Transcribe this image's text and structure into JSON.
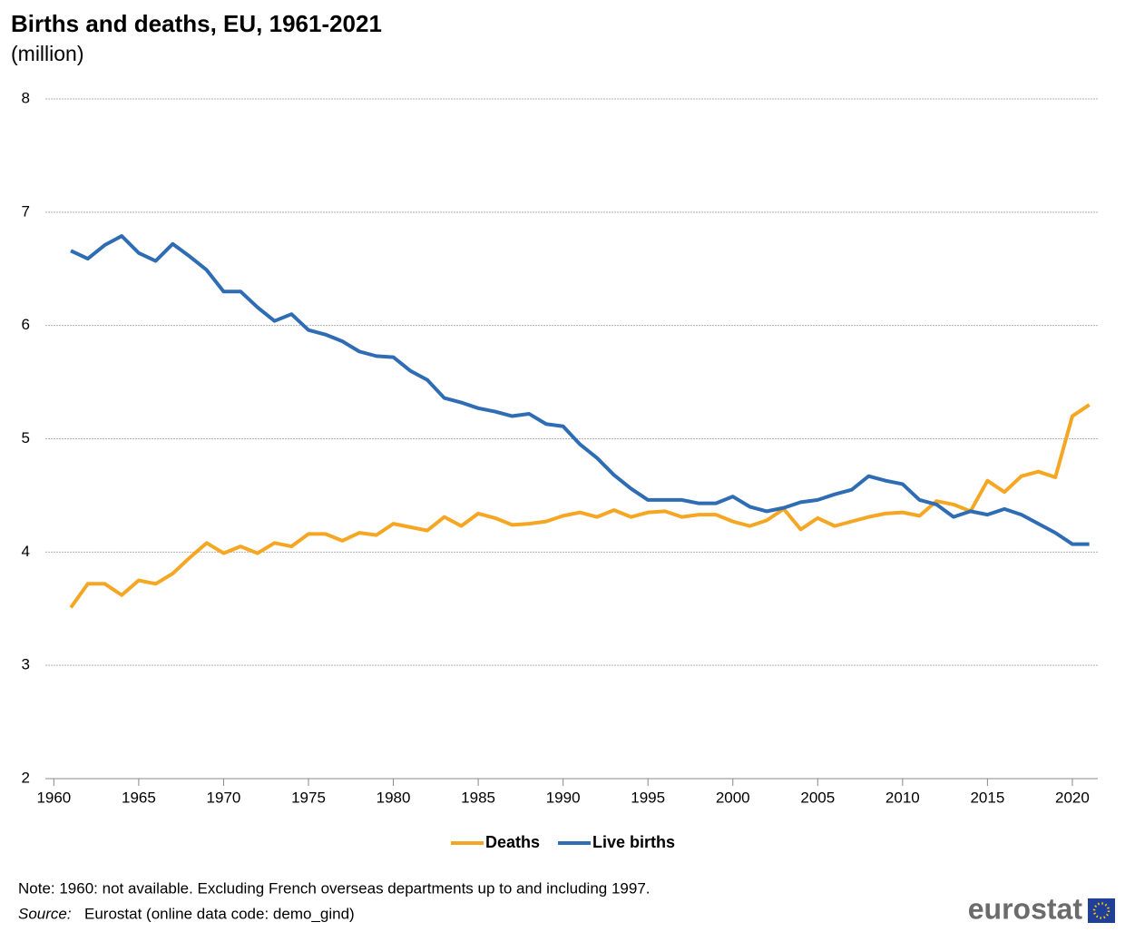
{
  "chart_data": {
    "type": "line",
    "title": "Births and deaths, EU, 1961-2021",
    "subtitle": "(million)",
    "x": [
      1961,
      1962,
      1963,
      1964,
      1965,
      1966,
      1967,
      1968,
      1969,
      1970,
      1971,
      1972,
      1973,
      1974,
      1975,
      1976,
      1977,
      1978,
      1979,
      1980,
      1981,
      1982,
      1983,
      1984,
      1985,
      1986,
      1987,
      1988,
      1989,
      1990,
      1991,
      1992,
      1993,
      1994,
      1995,
      1996,
      1997,
      1998,
      1999,
      2000,
      2001,
      2002,
      2003,
      2004,
      2005,
      2006,
      2007,
      2008,
      2009,
      2010,
      2011,
      2012,
      2013,
      2014,
      2015,
      2016,
      2017,
      2018,
      2019,
      2020,
      2021
    ],
    "series": [
      {
        "name": "Deaths",
        "color": "#f5a623",
        "values": [
          3.51,
          3.72,
          3.72,
          3.62,
          3.75,
          3.72,
          3.81,
          3.95,
          4.08,
          3.99,
          4.05,
          3.99,
          4.08,
          4.05,
          4.16,
          4.16,
          4.1,
          4.17,
          4.15,
          4.25,
          4.22,
          4.19,
          4.31,
          4.23,
          4.34,
          4.3,
          4.24,
          4.25,
          4.27,
          4.32,
          4.35,
          4.31,
          4.37,
          4.31,
          4.35,
          4.36,
          4.31,
          4.33,
          4.33,
          4.27,
          4.23,
          4.28,
          4.38,
          4.2,
          4.3,
          4.23,
          4.27,
          4.31,
          4.34,
          4.35,
          4.32,
          4.45,
          4.42,
          4.36,
          4.63,
          4.53,
          4.67,
          4.71,
          4.66,
          5.2,
          5.3
        ]
      },
      {
        "name": "Live births",
        "color": "#2e6db4",
        "values": [
          6.66,
          6.59,
          6.71,
          6.79,
          6.64,
          6.57,
          6.72,
          6.61,
          6.49,
          6.3,
          6.3,
          6.16,
          6.04,
          6.1,
          5.96,
          5.92,
          5.86,
          5.77,
          5.73,
          5.72,
          5.6,
          5.52,
          5.36,
          5.32,
          5.27,
          5.24,
          5.2,
          5.22,
          5.13,
          5.11,
          4.95,
          4.83,
          4.68,
          4.56,
          4.46,
          4.46,
          4.46,
          4.43,
          4.43,
          4.49,
          4.4,
          4.36,
          4.39,
          4.44,
          4.46,
          4.51,
          4.55,
          4.67,
          4.63,
          4.6,
          4.46,
          4.42,
          4.31,
          4.36,
          4.33,
          4.38,
          4.33,
          4.25,
          4.17,
          4.07,
          4.07
        ]
      }
    ],
    "xlim": [
      1959.5,
      2021.5
    ],
    "xticks": [
      1960,
      1965,
      1970,
      1975,
      1980,
      1985,
      1990,
      1995,
      2000,
      2005,
      2010,
      2015,
      2020
    ],
    "ylim": [
      2,
      8
    ],
    "yticks": [
      2,
      3,
      4,
      5,
      6,
      7,
      8
    ],
    "grid": true,
    "legend": "bottom",
    "note": "Note: 1960: not available. Excluding French overseas departments up to and including 1997.",
    "source_label": "Source:",
    "source": "Eurostat (online data code: demo_gind)",
    "logo": "eurostat"
  }
}
